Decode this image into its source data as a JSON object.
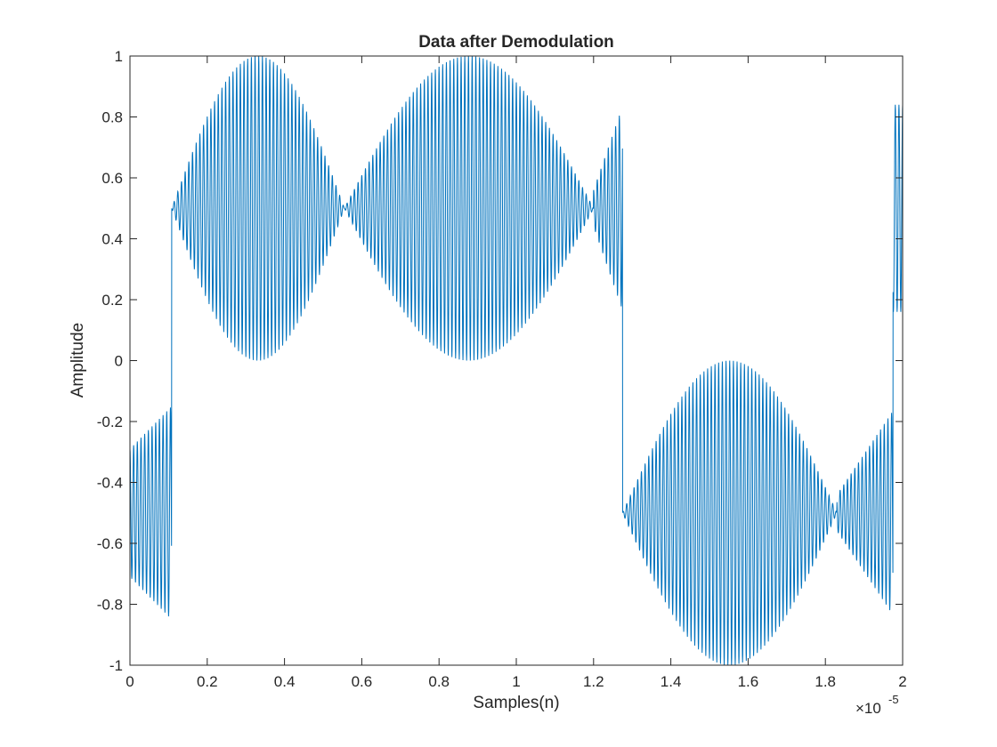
{
  "chart_data": {
    "type": "line",
    "title": "Data after Demodulation",
    "xlabel": "Samples(n)",
    "ylabel": "Amplitude",
    "x_exponent_label": "×10",
    "x_exponent_power": "-5",
    "xlim": [
      0,
      2.0
    ],
    "ylim": [
      -1,
      1
    ],
    "x_unit_scale": 1e-05,
    "grid": false,
    "legend": "none",
    "line_color": "#0072BD",
    "xticks": [
      0,
      0.2,
      0.4,
      0.6,
      0.8,
      1.0,
      1.2,
      1.4,
      1.6,
      1.8,
      2.0
    ],
    "xtick_labels": [
      "0",
      "0.2",
      "0.4",
      "0.6",
      "0.8",
      "1",
      "1.2",
      "1.4",
      "1.6",
      "1.8",
      "2"
    ],
    "yticks": [
      -1,
      -0.8,
      -0.6,
      -0.4,
      -0.2,
      0,
      0.2,
      0.4,
      0.6,
      0.8,
      1
    ],
    "ytick_labels": [
      "-1",
      "-0.8",
      "-0.6",
      "-0.4",
      "-0.2",
      "0",
      "0.2",
      "0.4",
      "0.6",
      "0.8",
      "1"
    ],
    "series": [
      {
        "oscillation_cycles_per_xunit": 105,
        "envelope_segments": [
          {
            "x_start": 0.0,
            "x_end": 0.108,
            "level": -0.5,
            "swing": 0.35,
            "bulge": 0.0,
            "shape": "taper",
            "dip_at": null
          },
          {
            "x_start": 0.108,
            "x_end": 0.555,
            "level": 0.5,
            "swing": 0.5,
            "bulge": 0.47,
            "shape": "dome",
            "dip_at": null
          },
          {
            "x_start": 0.555,
            "x_end": 1.275,
            "level": 0.5,
            "swing": 0.5,
            "bulge": 0.48,
            "shape": "dome",
            "dip_at": 1.2
          },
          {
            "x_start": 1.275,
            "x_end": 1.975,
            "level": -0.5,
            "swing": 0.5,
            "bulge": 0.48,
            "shape": "dome",
            "dip_at": 1.83
          },
          {
            "x_start": 1.975,
            "x_end": 2.0,
            "level": 0.5,
            "swing": 0.34,
            "bulge": 0.0,
            "shape": "flat",
            "dip_at": null
          }
        ],
        "peak_values": {
          "max": 1.0,
          "min": -1.0,
          "first_positive_burst_peak_x": 0.23,
          "second_positive_burst_peak_x": 0.87,
          "negative_burst_trough_x": 1.52,
          "null_points_x": [
            0.555,
            1.83
          ]
        }
      }
    ]
  }
}
